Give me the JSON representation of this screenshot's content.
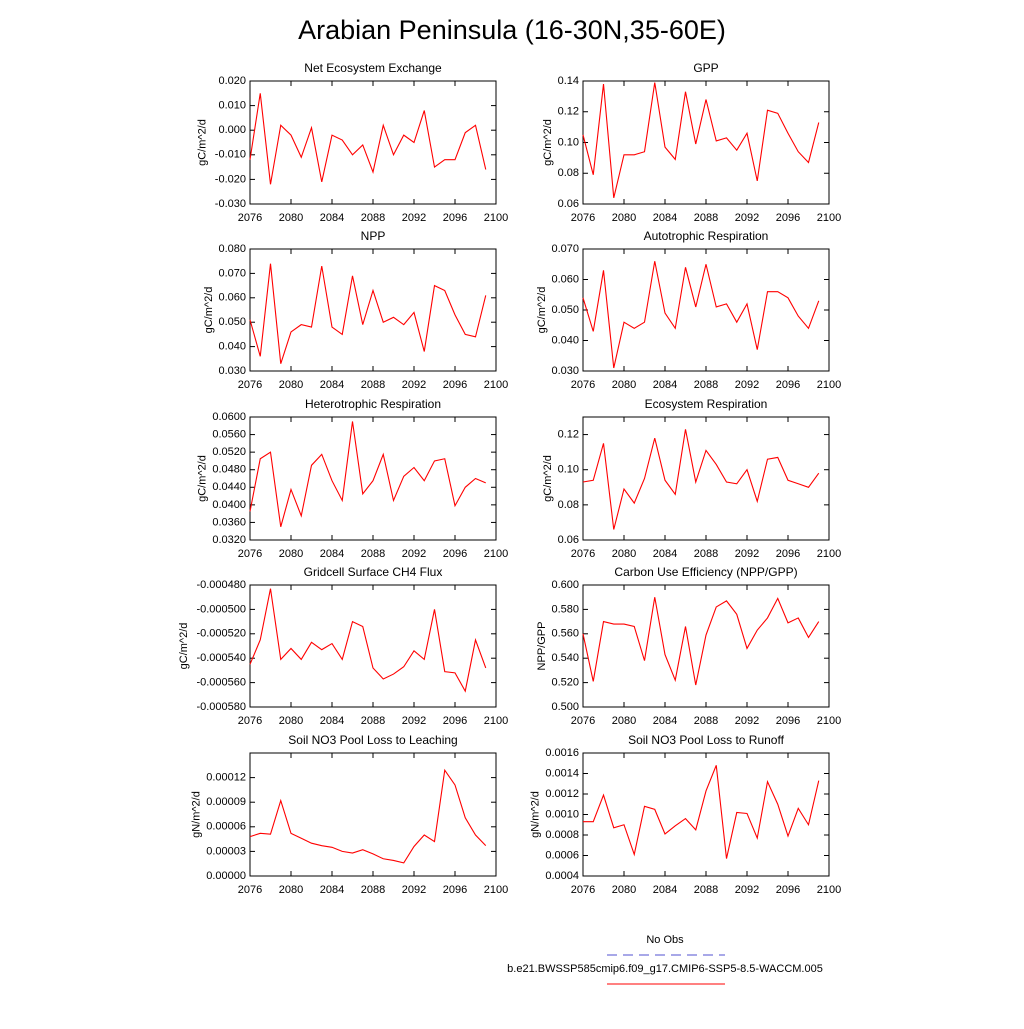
{
  "title": "Arabian Peninsula (16-30N,35-60E)",
  "legend": [
    {
      "name": "No Obs",
      "color": "#5050d0",
      "dash": true
    },
    {
      "name": "b.e21.BWSSP585cmip6.f09_g17.CMIP6-SSP5-8.5-WACCM.005",
      "color": "#ff0000",
      "dash": false
    }
  ],
  "chart_data": [
    {
      "type": "line",
      "title": "Net Ecosystem Exchange",
      "ylabel": "gC/m^2/d",
      "color": "#ff0000",
      "x": [
        2076,
        2077,
        2078,
        2079,
        2080,
        2081,
        2082,
        2083,
        2084,
        2085,
        2086,
        2087,
        2088,
        2089,
        2090,
        2091,
        2092,
        2093,
        2094,
        2095,
        2096,
        2097,
        2098,
        2099
      ],
      "values": [
        -0.012,
        0.015,
        -0.022,
        0.002,
        -0.002,
        -0.011,
        0.001,
        -0.021,
        -0.002,
        -0.004,
        -0.01,
        -0.006,
        -0.017,
        0.002,
        -0.01,
        -0.002,
        -0.005,
        0.008,
        -0.015,
        -0.012,
        -0.012,
        -0.001,
        0.002,
        -0.016
      ],
      "xlim": [
        2076,
        2100
      ],
      "xticks": [
        2076,
        2080,
        2084,
        2088,
        2092,
        2096,
        2100
      ],
      "ylim": [
        -0.03,
        0.02
      ],
      "yticks": [
        {
          "value": -0.03,
          "label": "-0.030"
        },
        {
          "value": -0.02,
          "label": "-0.020"
        },
        {
          "value": -0.01,
          "label": "-0.010"
        },
        {
          "value": 0,
          "label": "0.000"
        },
        {
          "value": 0.01,
          "label": "0.010"
        },
        {
          "value": 0.02,
          "label": "0.020"
        }
      ]
    },
    {
      "type": "line",
      "title": "GPP",
      "ylabel": "gC/m^2/d",
      "color": "#ff0000",
      "x": [
        2076,
        2077,
        2078,
        2079,
        2080,
        2081,
        2082,
        2083,
        2084,
        2085,
        2086,
        2087,
        2088,
        2089,
        2090,
        2091,
        2092,
        2093,
        2094,
        2095,
        2096,
        2097,
        2098,
        2099
      ],
      "values": [
        0.105,
        0.079,
        0.138,
        0.064,
        0.092,
        0.092,
        0.094,
        0.139,
        0.097,
        0.089,
        0.133,
        0.099,
        0.128,
        0.101,
        0.103,
        0.095,
        0.106,
        0.075,
        0.121,
        0.119,
        0.106,
        0.094,
        0.087,
        0.113
      ],
      "xlim": [
        2076,
        2100
      ],
      "xticks": [
        2076,
        2080,
        2084,
        2088,
        2092,
        2096,
        2100
      ],
      "ylim": [
        0.06,
        0.14
      ],
      "yticks": [
        0.06,
        0.08,
        {
          "value": 0.1,
          "label": "0.10"
        },
        0.12,
        0.14
      ]
    },
    {
      "type": "line",
      "title": "NPP",
      "ylabel": "gC/m^2/d",
      "color": "#ff0000",
      "x": [
        2076,
        2077,
        2078,
        2079,
        2080,
        2081,
        2082,
        2083,
        2084,
        2085,
        2086,
        2087,
        2088,
        2089,
        2090,
        2091,
        2092,
        2093,
        2094,
        2095,
        2096,
        2097,
        2098,
        2099
      ],
      "values": [
        0.051,
        0.036,
        0.074,
        0.033,
        0.046,
        0.049,
        0.048,
        0.073,
        0.048,
        0.045,
        0.069,
        0.049,
        0.063,
        0.05,
        0.052,
        0.049,
        0.054,
        0.038,
        0.065,
        0.063,
        0.053,
        0.045,
        0.044,
        0.061
      ],
      "xlim": [
        2076,
        2100
      ],
      "xticks": [
        2076,
        2080,
        2084,
        2088,
        2092,
        2096,
        2100
      ],
      "ylim": [
        0.03,
        0.08
      ],
      "yticks": [
        {
          "value": 0.03,
          "label": "0.030"
        },
        {
          "value": 0.04,
          "label": "0.040"
        },
        {
          "value": 0.05,
          "label": "0.050"
        },
        {
          "value": 0.06,
          "label": "0.060"
        },
        {
          "value": 0.07,
          "label": "0.070"
        },
        {
          "value": 0.08,
          "label": "0.080"
        }
      ]
    },
    {
      "type": "line",
      "title": "Autotrophic Respiration",
      "ylabel": "gC/m^2/d",
      "color": "#ff0000",
      "x": [
        2076,
        2077,
        2078,
        2079,
        2080,
        2081,
        2082,
        2083,
        2084,
        2085,
        2086,
        2087,
        2088,
        2089,
        2090,
        2091,
        2092,
        2093,
        2094,
        2095,
        2096,
        2097,
        2098,
        2099
      ],
      "values": [
        0.054,
        0.043,
        0.063,
        0.031,
        0.046,
        0.044,
        0.046,
        0.066,
        0.049,
        0.044,
        0.064,
        0.051,
        0.065,
        0.051,
        0.052,
        0.046,
        0.052,
        0.037,
        0.056,
        0.056,
        0.054,
        0.048,
        0.044,
        0.053
      ],
      "xlim": [
        2076,
        2100
      ],
      "xticks": [
        2076,
        2080,
        2084,
        2088,
        2092,
        2096,
        2100
      ],
      "ylim": [
        0.03,
        0.07
      ],
      "yticks": [
        {
          "value": 0.03,
          "label": "0.030"
        },
        {
          "value": 0.04,
          "label": "0.040"
        },
        {
          "value": 0.05,
          "label": "0.050"
        },
        {
          "value": 0.06,
          "label": "0.060"
        },
        {
          "value": 0.07,
          "label": "0.070"
        }
      ]
    },
    {
      "type": "line",
      "title": "Heterotrophic Respiration",
      "ylabel": "gC/m^2/d",
      "color": "#ff0000",
      "x": [
        2076,
        2077,
        2078,
        2079,
        2080,
        2081,
        2082,
        2083,
        2084,
        2085,
        2086,
        2087,
        2088,
        2089,
        2090,
        2091,
        2092,
        2093,
        2094,
        2095,
        2096,
        2097,
        2098,
        2099
      ],
      "values": [
        0.0385,
        0.0505,
        0.052,
        0.035,
        0.0435,
        0.0375,
        0.049,
        0.0515,
        0.0455,
        0.041,
        0.059,
        0.0425,
        0.0455,
        0.0515,
        0.041,
        0.0465,
        0.0485,
        0.0455,
        0.05,
        0.0505,
        0.0398,
        0.044,
        0.046,
        0.045
      ],
      "xlim": [
        2076,
        2100
      ],
      "xticks": [
        2076,
        2080,
        2084,
        2088,
        2092,
        2096,
        2100
      ],
      "ylim": [
        0.032,
        0.06
      ],
      "yticks": [
        {
          "value": 0.032,
          "label": "0.0320"
        },
        {
          "value": 0.036,
          "label": "0.0360"
        },
        {
          "value": 0.04,
          "label": "0.0400"
        },
        {
          "value": 0.044,
          "label": "0.0440"
        },
        {
          "value": 0.048,
          "label": "0.0480"
        },
        {
          "value": 0.052,
          "label": "0.0520"
        },
        {
          "value": 0.056,
          "label": "0.0560"
        },
        {
          "value": 0.06,
          "label": "0.0600"
        }
      ]
    },
    {
      "type": "line",
      "title": "Ecosystem Respiration",
      "ylabel": "gC/m^2/d",
      "color": "#ff0000",
      "x": [
        2076,
        2077,
        2078,
        2079,
        2080,
        2081,
        2082,
        2083,
        2084,
        2085,
        2086,
        2087,
        2088,
        2089,
        2090,
        2091,
        2092,
        2093,
        2094,
        2095,
        2096,
        2097,
        2098,
        2099
      ],
      "values": [
        0.093,
        0.094,
        0.115,
        0.066,
        0.089,
        0.081,
        0.095,
        0.118,
        0.094,
        0.086,
        0.123,
        0.093,
        0.111,
        0.103,
        0.093,
        0.092,
        0.1,
        0.082,
        0.106,
        0.107,
        0.094,
        0.092,
        0.09,
        0.098
      ],
      "xlim": [
        2076,
        2100
      ],
      "xticks": [
        2076,
        2080,
        2084,
        2088,
        2092,
        2096,
        2100
      ],
      "ylim": [
        0.06,
        0.13
      ],
      "yticks": [
        0.06,
        0.08,
        {
          "value": 0.1,
          "label": "0.10"
        },
        0.12
      ]
    },
    {
      "type": "line",
      "title": "Gridcell Surface CH4 Flux",
      "ylabel": "gC/m^2/d",
      "color": "#ff0000",
      "x": [
        2076,
        2077,
        2078,
        2079,
        2080,
        2081,
        2082,
        2083,
        2084,
        2085,
        2086,
        2087,
        2088,
        2089,
        2090,
        2091,
        2092,
        2093,
        2094,
        2095,
        2096,
        2097,
        2098,
        2099
      ],
      "values": [
        -0.000545,
        -0.000525,
        -0.000483,
        -0.000541,
        -0.000532,
        -0.000541,
        -0.000527,
        -0.000533,
        -0.000528,
        -0.000541,
        -0.00051,
        -0.000514,
        -0.000548,
        -0.000557,
        -0.000553,
        -0.000547,
        -0.000534,
        -0.000541,
        -0.0005,
        -0.000551,
        -0.000552,
        -0.000567,
        -0.000525,
        -0.000548
      ],
      "xlim": [
        2076,
        2100
      ],
      "xticks": [
        2076,
        2080,
        2084,
        2088,
        2092,
        2096,
        2100
      ],
      "ylim": [
        -0.00058,
        -0.00048
      ],
      "yticks": [
        {
          "value": -0.00058,
          "label": "-0.000580"
        },
        {
          "value": -0.00056,
          "label": "-0.000560"
        },
        {
          "value": -0.00054,
          "label": "-0.000540"
        },
        {
          "value": -0.00052,
          "label": "-0.000520"
        },
        {
          "value": -0.0005,
          "label": "-0.000500"
        },
        {
          "value": -0.00048,
          "label": "-0.000480"
        }
      ]
    },
    {
      "type": "line",
      "title": "Carbon Use Efficiency (NPP/GPP)",
      "ylabel": "NPP/GPP",
      "color": "#ff0000",
      "x": [
        2076,
        2077,
        2078,
        2079,
        2080,
        2081,
        2082,
        2083,
        2084,
        2085,
        2086,
        2087,
        2088,
        2089,
        2090,
        2091,
        2092,
        2093,
        2094,
        2095,
        2096,
        2097,
        2098,
        2099
      ],
      "values": [
        0.56,
        0.521,
        0.57,
        0.568,
        0.568,
        0.566,
        0.538,
        0.59,
        0.543,
        0.522,
        0.566,
        0.518,
        0.559,
        0.582,
        0.587,
        0.576,
        0.548,
        0.563,
        0.573,
        0.589,
        0.569,
        0.573,
        0.557,
        0.57
      ],
      "xlim": [
        2076,
        2100
      ],
      "xticks": [
        2076,
        2080,
        2084,
        2088,
        2092,
        2096,
        2100
      ],
      "ylim": [
        0.5,
        0.6
      ],
      "yticks": [
        {
          "value": 0.5,
          "label": "0.500"
        },
        {
          "value": 0.52,
          "label": "0.520"
        },
        {
          "value": 0.54,
          "label": "0.540"
        },
        {
          "value": 0.56,
          "label": "0.560"
        },
        {
          "value": 0.58,
          "label": "0.580"
        },
        {
          "value": 0.6,
          "label": "0.600"
        }
      ]
    },
    {
      "type": "line",
      "title": "Soil NO3 Pool Loss to Leaching",
      "ylabel": "gN/m^2/d",
      "color": "#ff0000",
      "x": [
        2076,
        2077,
        2078,
        2079,
        2080,
        2081,
        2082,
        2083,
        2084,
        2085,
        2086,
        2087,
        2088,
        2089,
        2090,
        2091,
        2092,
        2093,
        2094,
        2095,
        2096,
        2097,
        2098,
        2099
      ],
      "values": [
        4.8e-05,
        5.2e-05,
        5.1e-05,
        9.2e-05,
        5.2e-05,
        4.6e-05,
        4e-05,
        3.7e-05,
        3.5e-05,
        3e-05,
        2.8e-05,
        3.2e-05,
        2.7e-05,
        2.1e-05,
        1.9e-05,
        1.6e-05,
        3.6e-05,
        5e-05,
        4.2e-05,
        0.000129,
        0.000111,
        7.1e-05,
        5e-05,
        3.7e-05
      ],
      "xlim": [
        2076,
        2100
      ],
      "xticks": [
        2076,
        2080,
        2084,
        2088,
        2092,
        2096,
        2100
      ],
      "ylim": [
        0,
        0.00015
      ],
      "yticks": [
        {
          "value": 0,
          "label": "0.00000"
        },
        3e-05,
        6e-05,
        9e-05,
        0.00012
      ]
    },
    {
      "type": "line",
      "title": "Soil NO3 Pool Loss to Runoff",
      "ylabel": "gN/m^2/d",
      "color": "#ff0000",
      "x": [
        2076,
        2077,
        2078,
        2079,
        2080,
        2081,
        2082,
        2083,
        2084,
        2085,
        2086,
        2087,
        2088,
        2089,
        2090,
        2091,
        2092,
        2093,
        2094,
        2095,
        2096,
        2097,
        2098,
        2099
      ],
      "values": [
        0.00093,
        0.00093,
        0.00119,
        0.00087,
        0.0009,
        0.00061,
        0.00108,
        0.00105,
        0.00081,
        0.00089,
        0.00096,
        0.00085,
        0.00123,
        0.00148,
        0.00057,
        0.00102,
        0.00101,
        0.00077,
        0.00132,
        0.0011,
        0.00079,
        0.00106,
        0.0009,
        0.00133
      ],
      "xlim": [
        2076,
        2100
      ],
      "xticks": [
        2076,
        2080,
        2084,
        2088,
        2092,
        2096,
        2100
      ],
      "ylim": [
        0.0004,
        0.0016
      ],
      "yticks": [
        0.0004,
        0.0006,
        0.0008,
        {
          "value": 0.001,
          "label": "0.0010"
        },
        0.0012,
        0.0014,
        0.0016
      ]
    }
  ]
}
